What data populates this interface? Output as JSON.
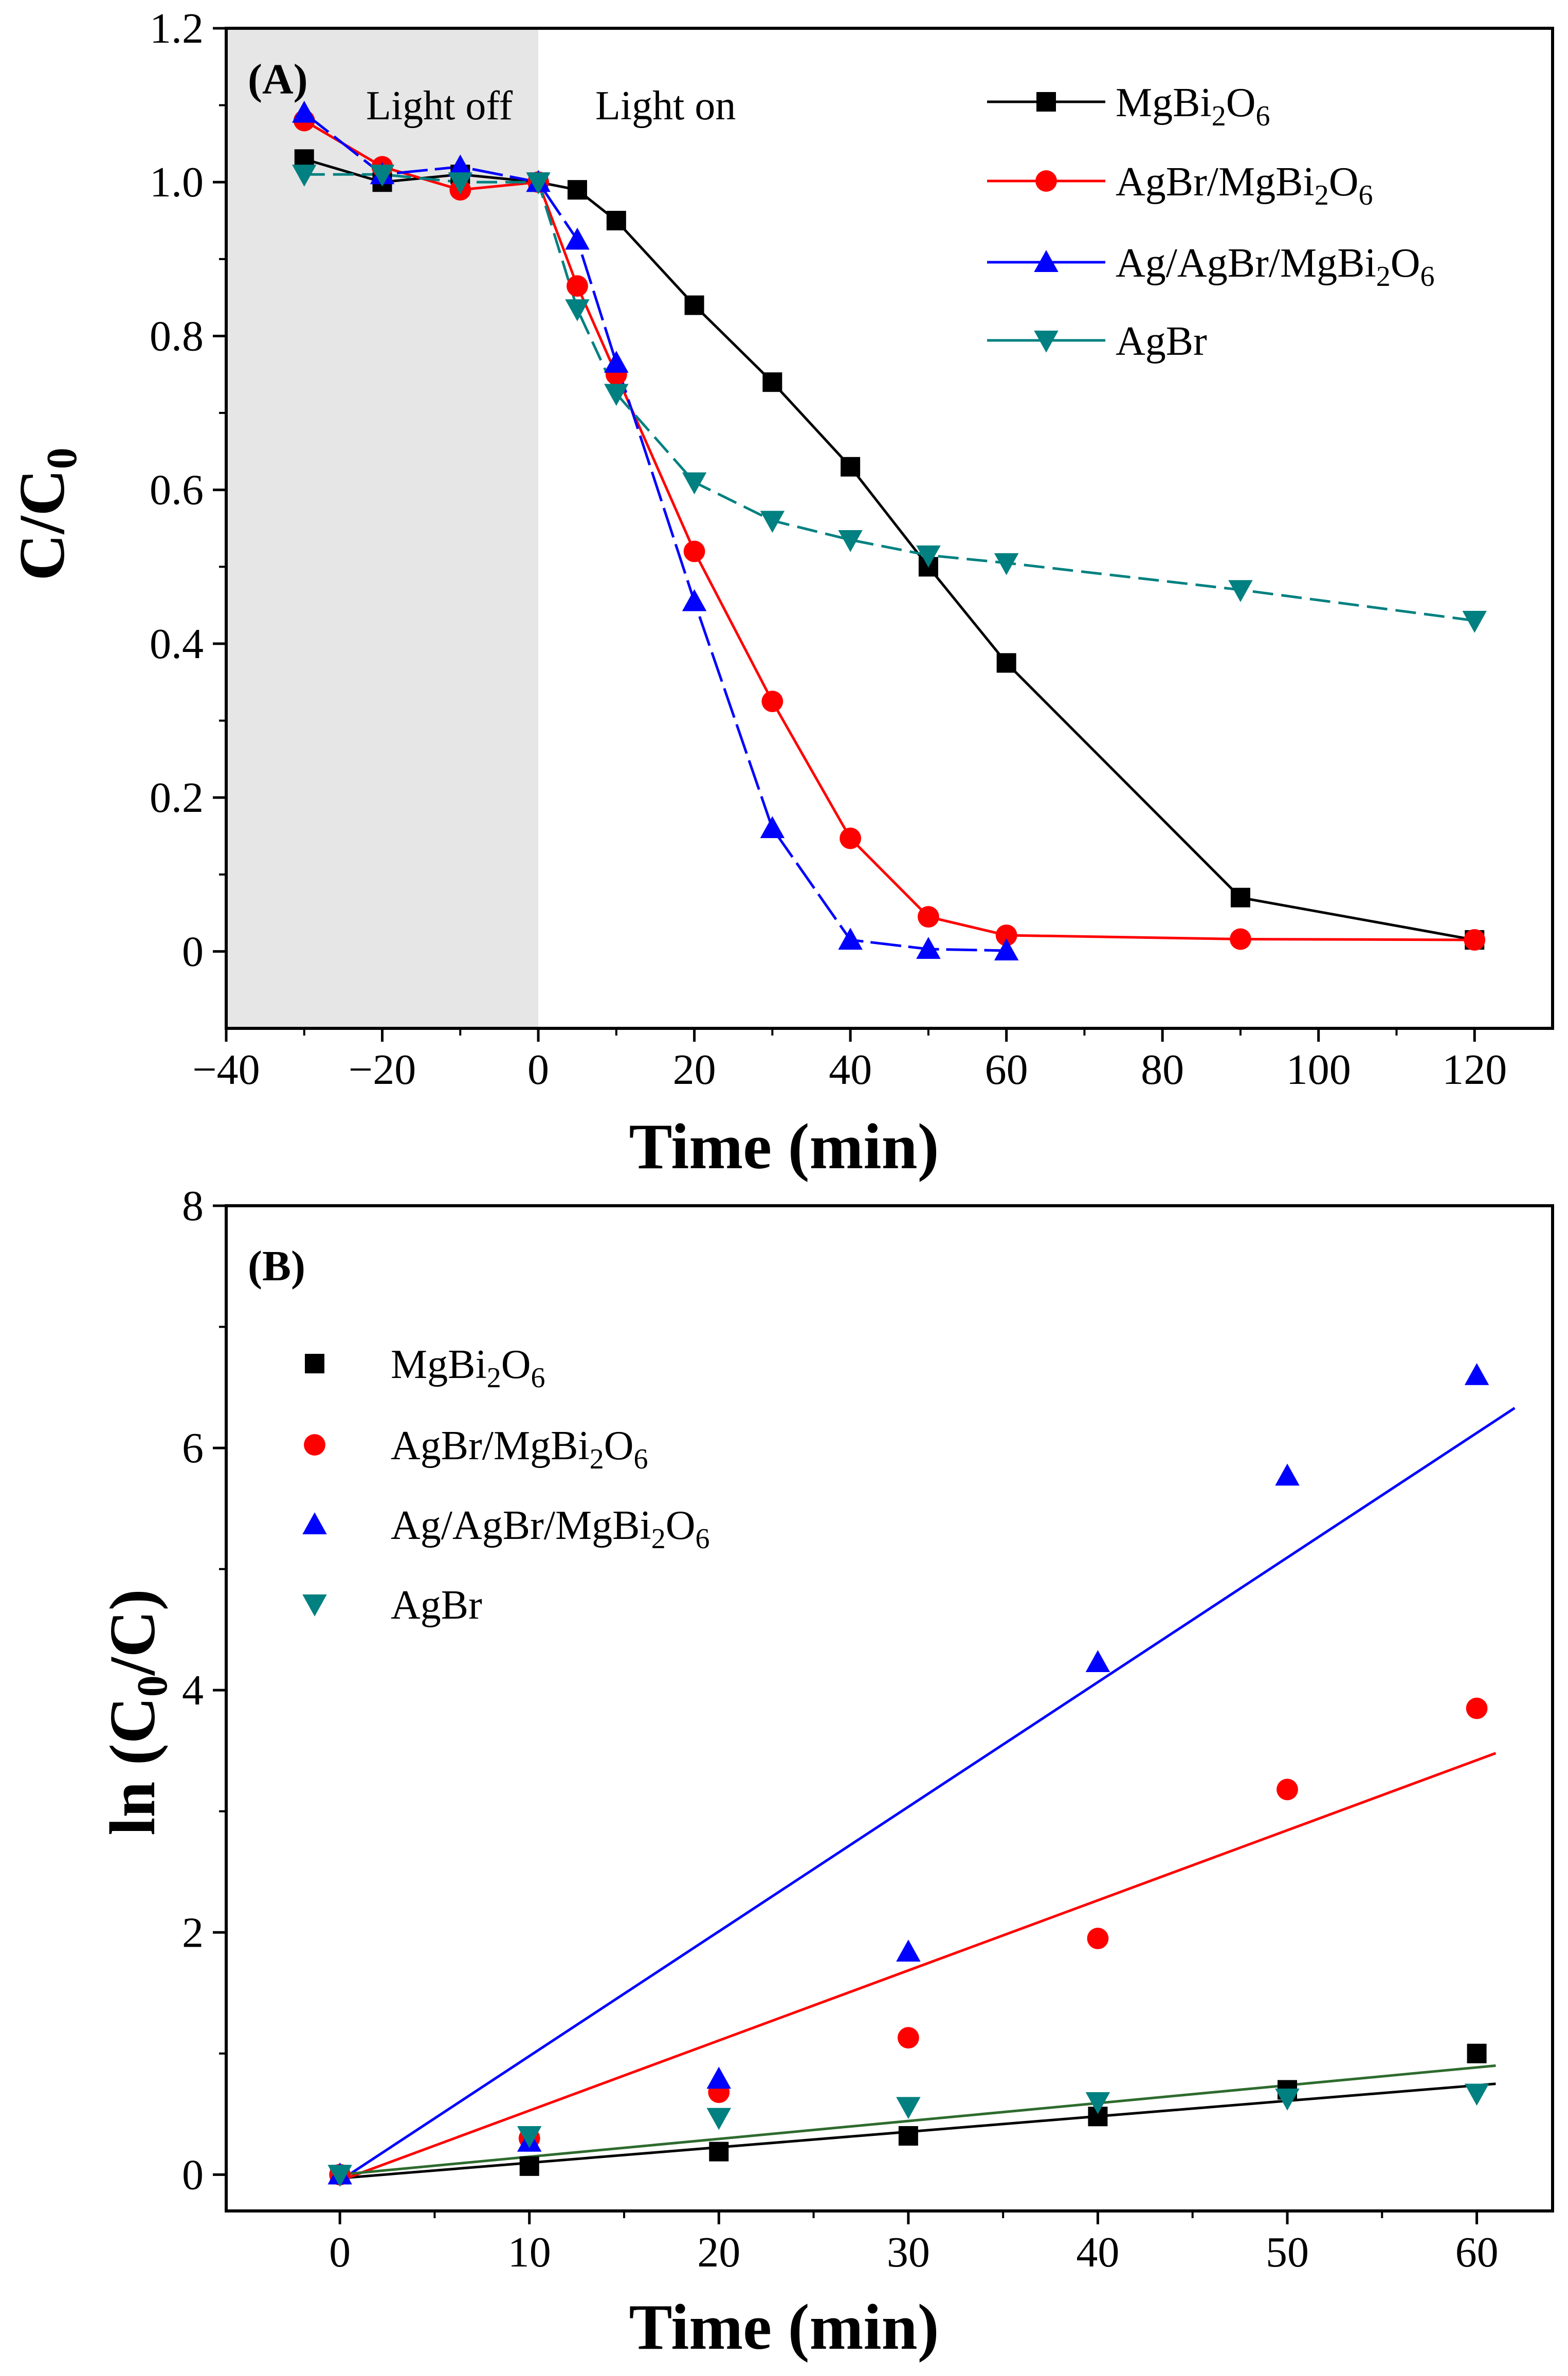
{
  "colors": {
    "MgBi2O6": "#000000",
    "AgBr/MgBi2O6": "#ff0000",
    "Ag/AgBr/MgBi2O6": "#0000ff",
    "AgBr": "#008080",
    "AgBr_fit": "#2e6b2e",
    "dark_region": "#e6e6e6"
  },
  "chart_data": [
    {
      "type": "line",
      "panel": "(A)",
      "xlabel": "Time (min)",
      "ylabel": "C/C0",
      "xlim": [
        -40,
        130
      ],
      "ylim": [
        -0.1,
        1.2
      ],
      "xticks": [
        -40,
        -20,
        0,
        20,
        40,
        60,
        80,
        100,
        120
      ],
      "xtick_labels": [
        "−40",
        "−20",
        "0",
        "20",
        "40",
        "60",
        "80",
        "100",
        "120"
      ],
      "yticks": [
        0,
        0.2,
        0.4,
        0.6,
        0.8,
        1.0,
        1.2
      ],
      "ytick_labels": [
        "0",
        "0.2",
        "0.4",
        "0.6",
        "0.8",
        "1.0",
        "1.2"
      ],
      "shaded_region": {
        "x": [
          -40,
          0
        ],
        "label": "Light off"
      },
      "light_on_label": "Light on",
      "legend_position": "top-right",
      "series": [
        {
          "name": "MgBi2O6",
          "marker": "square",
          "x": [
            -30,
            -20,
            -10,
            0,
            5,
            10,
            20,
            30,
            40,
            50,
            60,
            90,
            120
          ],
          "values": [
            1.03,
            1.0,
            1.01,
            1.0,
            0.99,
            0.95,
            0.84,
            0.74,
            0.63,
            0.5,
            0.375,
            0.07,
            0.015
          ]
        },
        {
          "name": "AgBr/MgBi2O6",
          "marker": "circle",
          "x": [
            -30,
            -20,
            -10,
            0,
            5,
            10,
            20,
            30,
            40,
            50,
            60,
            90,
            120
          ],
          "values": [
            1.08,
            1.02,
            0.99,
            1.0,
            0.865,
            0.75,
            0.52,
            0.325,
            0.147,
            0.045,
            0.021,
            0.016,
            0.015
          ]
        },
        {
          "name": "Ag/AgBr/MgBi2O6",
          "marker": "triangle-up",
          "x": [
            -30,
            -20,
            -10,
            0,
            5,
            10,
            20,
            30,
            40,
            50,
            60
          ],
          "values": [
            1.09,
            1.01,
            1.02,
            1.0,
            0.925,
            0.765,
            0.455,
            0.16,
            0.015,
            0.003,
            0.001
          ]
        },
        {
          "name": "AgBr",
          "marker": "triangle-down",
          "x": [
            -30,
            -20,
            -10,
            0,
            5,
            10,
            20,
            30,
            40,
            50,
            60,
            90,
            120
          ],
          "values": [
            1.01,
            1.01,
            1.0,
            1.0,
            0.835,
            0.725,
            0.61,
            0.56,
            0.535,
            0.515,
            0.505,
            0.47,
            0.43
          ]
        }
      ]
    },
    {
      "type": "scatter",
      "panel": "(B)",
      "xlabel": "Time (min)",
      "ylabel": "ln (C0/C)",
      "xlim": [
        -6,
        64
      ],
      "ylim": [
        -0.3,
        8
      ],
      "xticks": [
        0,
        10,
        20,
        30,
        40,
        50,
        60
      ],
      "xtick_labels": [
        "0",
        "10",
        "20",
        "30",
        "40",
        "50",
        "60"
      ],
      "yticks": [
        0,
        2,
        4,
        6,
        8
      ],
      "ytick_labels": [
        "0",
        "2",
        "4",
        "6",
        "8"
      ],
      "legend_position": "top-left",
      "series": [
        {
          "name": "MgBi2O6",
          "marker": "square",
          "x": [
            0,
            10,
            20,
            30,
            40,
            50,
            60
          ],
          "values": [
            0,
            0.07,
            0.19,
            0.32,
            0.48,
            0.7,
            1.0
          ],
          "fit": {
            "x": [
              0,
              61
            ],
            "y": [
              -0.03,
              0.75
            ]
          }
        },
        {
          "name": "AgBr/MgBi2O6",
          "marker": "circle",
          "x": [
            0,
            10,
            20,
            30,
            40,
            50,
            60
          ],
          "values": [
            0,
            0.3,
            0.68,
            1.13,
            1.95,
            3.18,
            3.85
          ],
          "fit": {
            "x": [
              0,
              61
            ],
            "y": [
              -0.05,
              3.48
            ]
          }
        },
        {
          "name": "Ag/AgBr/MgBi2O6",
          "marker": "triangle-up",
          "x": [
            0,
            10,
            20,
            30,
            40,
            50,
            60
          ],
          "values": [
            0,
            0.27,
            0.79,
            1.84,
            4.23,
            5.77,
            6.6
          ],
          "fit": {
            "x": [
              0,
              62
            ],
            "y": [
              -0.05,
              6.33
            ]
          }
        },
        {
          "name": "AgBr",
          "marker": "triangle-down",
          "x": [
            0,
            10,
            20,
            30,
            40,
            50,
            60
          ],
          "values": [
            0,
            0.32,
            0.47,
            0.56,
            0.6,
            0.63,
            0.67
          ],
          "fit": {
            "x": [
              0,
              61
            ],
            "y": [
              0.0,
              0.9
            ]
          }
        }
      ]
    }
  ]
}
